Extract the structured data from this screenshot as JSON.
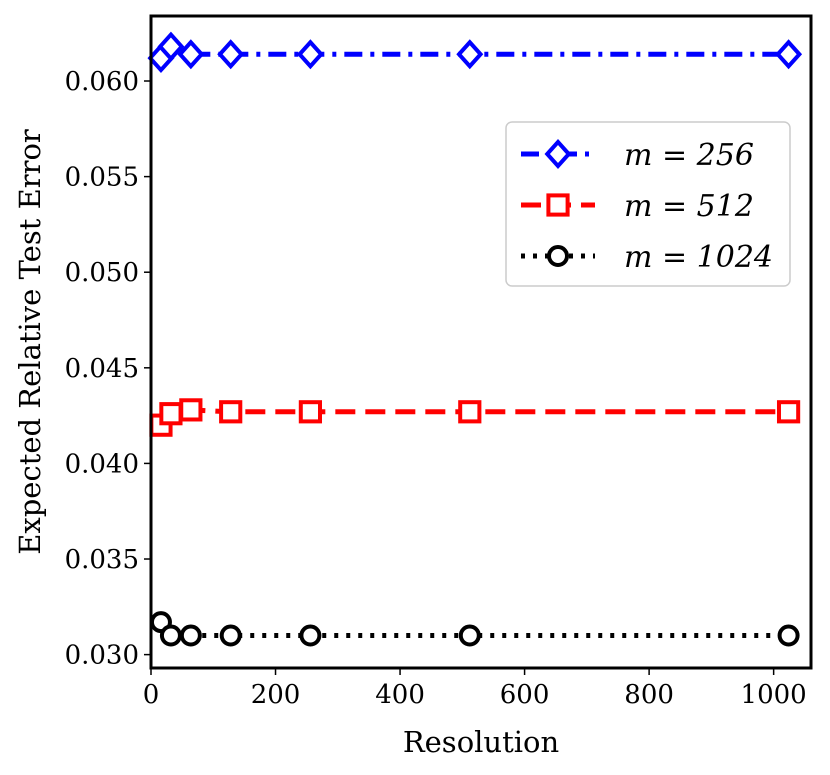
{
  "chart_data": {
    "type": "line",
    "xlabel": "Resolution",
    "ylabel": "Expected Relative Test Error",
    "xlim": [
      0,
      1060
    ],
    "ylim": [
      0.0293,
      0.0634
    ],
    "xticks": [
      0,
      200,
      400,
      600,
      800,
      1000
    ],
    "yticks": [
      0.03,
      0.035,
      0.04,
      0.045,
      0.05,
      0.055,
      0.06
    ],
    "xtick_labels": [
      "0",
      "200",
      "400",
      "600",
      "800",
      "1000"
    ],
    "ytick_labels": [
      "0.030",
      "0.035",
      "0.040",
      "0.045",
      "0.050",
      "0.055",
      "0.060"
    ],
    "grid": false,
    "legend_position": "upper-right",
    "series": [
      {
        "name": "m = 256",
        "color": "#0000ff",
        "line_style": "dashdot",
        "marker": "diamond",
        "x": [
          16,
          32,
          64,
          128,
          256,
          512,
          1024
        ],
        "y": [
          0.0612,
          0.0618,
          0.0614,
          0.0614,
          0.0614,
          0.0614,
          0.0614
        ]
      },
      {
        "name": "m = 512",
        "color": "#ff0000",
        "line_style": "dashed",
        "marker": "square",
        "x": [
          16,
          32,
          64,
          128,
          256,
          512,
          1024
        ],
        "y": [
          0.042,
          0.0426,
          0.0428,
          0.0427,
          0.0427,
          0.0427,
          0.0427
        ]
      },
      {
        "name": "m = 1024",
        "color": "#000000",
        "line_style": "dotted",
        "marker": "circle",
        "x": [
          16,
          32,
          64,
          128,
          256,
          512,
          1024
        ],
        "y": [
          0.0317,
          0.031,
          0.031,
          0.031,
          0.031,
          0.031,
          0.031
        ]
      }
    ]
  }
}
